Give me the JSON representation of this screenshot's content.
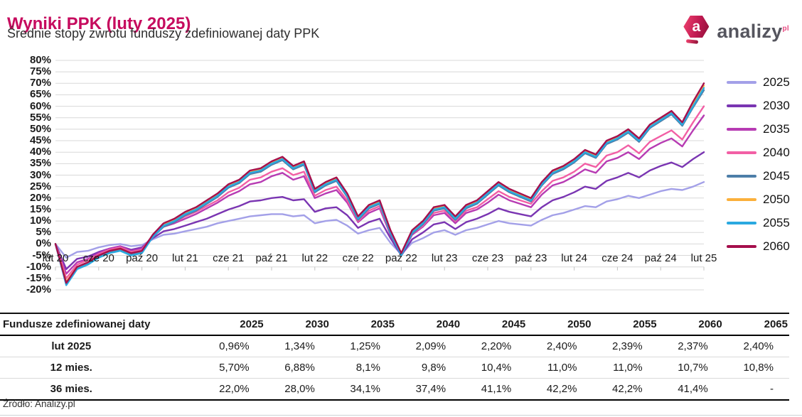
{
  "header": {
    "title": "Wyniki PPK (luty 2025)",
    "subtitle": "Średnie stopy zwrotu funduszy zdefiniowanej daty PPK",
    "logo": {
      "text": "analizy",
      "superscript": "pl",
      "icon_letter": "a"
    }
  },
  "colors": {
    "title": "#c60b5e",
    "grid": "#d8d8d8",
    "tick": "#c2c2c2",
    "axis_text": "#1a1a1a"
  },
  "chart_data": {
    "type": "line",
    "title": "Wyniki PPK (luty 2025)",
    "subtitle": "Średnie stopy zwrotu funduszy zdefiniowanej daty PPK",
    "xlabel": "",
    "ylabel": "",
    "ylim": [
      -20,
      80
    ],
    "y_tick_step": 5,
    "y_tick_suffix": "%",
    "grid": true,
    "legend_position": "right",
    "x_unit": "months from lut 2020 to lut 2025",
    "x_tick_positions": [
      0,
      4,
      8,
      12,
      16,
      20,
      24,
      28,
      32,
      36,
      40,
      44,
      48,
      52,
      56,
      60
    ],
    "x_tick_labels": [
      "lut 20",
      "cze 20",
      "paź 20",
      "lut 21",
      "cze 21",
      "paź 21",
      "lut 22",
      "cze 22",
      "paź 22",
      "lut 23",
      "cze 23",
      "paź 23",
      "lut 24",
      "cze 24",
      "paź 24",
      "lut 25"
    ],
    "series": [
      {
        "name": "2025",
        "color": "#a3a0e8",
        "values": [
          0,
          -6,
          -3.5,
          -3,
          -1.5,
          -0.5,
          0,
          -1,
          -0.5,
          2,
          4,
          4.5,
          5.5,
          6.5,
          7.5,
          9,
          10,
          11,
          12,
          12.5,
          13,
          13,
          12,
          12.5,
          9,
          10,
          10.5,
          8,
          4.5,
          6,
          7,
          0.5,
          -4.5,
          0.5,
          2.5,
          5,
          6,
          4,
          6,
          7,
          8.5,
          10,
          9,
          8.5,
          8,
          10.5,
          12.5,
          13.5,
          15,
          16.5,
          16,
          18.5,
          19.5,
          21,
          20,
          21.5,
          23,
          24,
          23.5,
          25,
          27
        ]
      },
      {
        "name": "2030",
        "color": "#7a35b2",
        "values": [
          0,
          -11,
          -6.5,
          -5.5,
          -3.5,
          -2,
          -1,
          -2.5,
          -1.5,
          2.5,
          5.5,
          6.5,
          8,
          9.5,
          11,
          13,
          15,
          16.5,
          18.5,
          19,
          20,
          20.5,
          19,
          19.5,
          14,
          15.5,
          16,
          12.5,
          7,
          9.5,
          11,
          2.5,
          -5,
          2,
          5,
          8.5,
          9.5,
          6.5,
          9.5,
          11,
          13,
          15.5,
          14,
          13,
          12,
          16,
          19,
          20.5,
          22.5,
          25,
          24,
          27.5,
          29,
          31,
          29,
          32,
          34,
          35.5,
          33.5,
          37,
          40
        ]
      },
      {
        "name": "2035",
        "color": "#b73bb3",
        "values": [
          0,
          -13,
          -8,
          -6.5,
          -4,
          -2,
          -1,
          -3,
          -2,
          3.5,
          7.5,
          9,
          11,
          13,
          15.5,
          18,
          21,
          23,
          26,
          27,
          29.5,
          31,
          28,
          29.5,
          20,
          22,
          23.5,
          18,
          9.5,
          13.5,
          15.5,
          4,
          -4.5,
          4,
          7.5,
          12.5,
          13.5,
          9,
          13.5,
          15,
          18,
          21.5,
          19,
          17.5,
          16,
          21.5,
          25.5,
          27,
          29.5,
          32.5,
          31,
          36,
          37.5,
          40,
          37,
          41.5,
          44,
          46,
          42.5,
          49.5,
          56
        ]
      },
      {
        "name": "2040",
        "color": "#f25fa5",
        "values": [
          0,
          -15,
          -9,
          -7,
          -4.5,
          -2.5,
          -1.5,
          -3.5,
          -2.5,
          3.5,
          8,
          9.5,
          12,
          14,
          16.5,
          19,
          22.5,
          24.5,
          28,
          29,
          31.5,
          33,
          30,
          31.5,
          21,
          23.5,
          25,
          19,
          10,
          14.5,
          16.5,
          4.5,
          -4.5,
          4.5,
          8,
          13.5,
          14.5,
          10,
          14.5,
          16,
          19.5,
          23,
          20.5,
          19,
          17.5,
          23,
          27.5,
          29,
          31.5,
          35,
          33.5,
          38.5,
          40,
          43,
          39.5,
          44.5,
          47,
          49.5,
          45.5,
          53,
          60
        ]
      },
      {
        "name": "2045",
        "color": "#4d7ea8",
        "values": [
          0,
          -17.5,
          -10.5,
          -8.5,
          -5.5,
          -3.5,
          -2.5,
          -4.5,
          -3.5,
          3,
          7.5,
          9.5,
          12.5,
          14.5,
          17.5,
          20.5,
          24.5,
          26.5,
          30.5,
          31.5,
          34.5,
          36.5,
          32.5,
          34.5,
          22.5,
          25.5,
          27.5,
          20.5,
          10.5,
          15.5,
          17.5,
          4.5,
          -5,
          4.5,
          8.5,
          14.5,
          15.5,
          10.5,
          15.5,
          17.5,
          21.5,
          25.5,
          22.5,
          20.5,
          18.5,
          25.5,
          30.5,
          32.5,
          35.5,
          39.5,
          37.5,
          43.5,
          45.5,
          48.5,
          44.5,
          50.5,
          53.5,
          56.5,
          51.5,
          59.5,
          67
        ]
      },
      {
        "name": "2050",
        "color": "#fbb03b",
        "values": [
          0,
          -16.5,
          -10,
          -8,
          -5,
          -3,
          -2,
          -4,
          -3,
          3.5,
          8.5,
          10.5,
          13.5,
          15.5,
          18.5,
          21.5,
          25.5,
          27.5,
          31.5,
          32.5,
          35.5,
          37.5,
          33.5,
          35.5,
          23.5,
          26.5,
          28.5,
          21.5,
          11.5,
          16.5,
          18.5,
          5.5,
          -4.5,
          5.5,
          9.5,
          15.5,
          16.5,
          11.5,
          16.5,
          18.5,
          22.5,
          26.5,
          23.5,
          21.5,
          19.5,
          26.5,
          31.5,
          33.5,
          36.5,
          40.5,
          38.5,
          44.5,
          46.5,
          49.5,
          45.5,
          51.5,
          54.5,
          57.5,
          52.5,
          61,
          69
        ]
      },
      {
        "name": "2055",
        "color": "#2aa9e0",
        "values": [
          0,
          -18,
          -11,
          -9,
          -6,
          -4,
          -3,
          -5,
          -4,
          3,
          8,
          10,
          13,
          15,
          18,
          21,
          25,
          27,
          31,
          32,
          35,
          37,
          33,
          35,
          23,
          26,
          28,
          21,
          11,
          16,
          18,
          5,
          -5,
          5,
          9,
          15,
          16,
          11,
          16,
          18,
          22,
          26,
          23,
          21,
          19,
          26,
          31,
          33,
          36,
          40,
          38,
          44,
          46,
          49,
          45,
          51,
          54,
          57,
          52,
          60,
          68
        ]
      },
      {
        "name": "2060",
        "color": "#a50f4c",
        "values": [
          0,
          -17,
          -10,
          -8,
          -5,
          -3,
          -2,
          -4,
          -3,
          4,
          9,
          11,
          14,
          16,
          19,
          22,
          26,
          28,
          32,
          33,
          36,
          38,
          34,
          36,
          24,
          27,
          29,
          22,
          12,
          17,
          19,
          6,
          -4,
          6,
          10,
          16,
          17,
          12,
          17,
          19,
          23,
          27,
          24,
          22,
          20,
          27,
          32,
          34,
          37,
          41,
          39,
          45,
          47,
          50,
          46,
          52,
          55,
          58,
          53,
          62,
          70
        ]
      }
    ]
  },
  "table": {
    "header": [
      "Fundusze zdefiniowanej daty",
      "2025",
      "2030",
      "2035",
      "2040",
      "2045",
      "2050",
      "2055",
      "2060",
      "2065"
    ],
    "rows": [
      {
        "label": "lut 2025",
        "values": [
          "0,96%",
          "1,34%",
          "1,25%",
          "2,09%",
          "2,20%",
          "2,40%",
          "2,39%",
          "2,37%",
          "2,40%"
        ]
      },
      {
        "label": "12 mies.",
        "values": [
          "5,70%",
          "6,88%",
          "8,1%",
          "9,8%",
          "10,4%",
          "11,0%",
          "11,0%",
          "10,7%",
          "10,8%"
        ]
      },
      {
        "label": "36 mies.",
        "values": [
          "22,0%",
          "28,0%",
          "34,1%",
          "37,4%",
          "41,1%",
          "42,2%",
          "42,2%",
          "41,4%",
          "-"
        ]
      }
    ]
  },
  "footer": {
    "source": "Źródło: Analizy.pl"
  }
}
